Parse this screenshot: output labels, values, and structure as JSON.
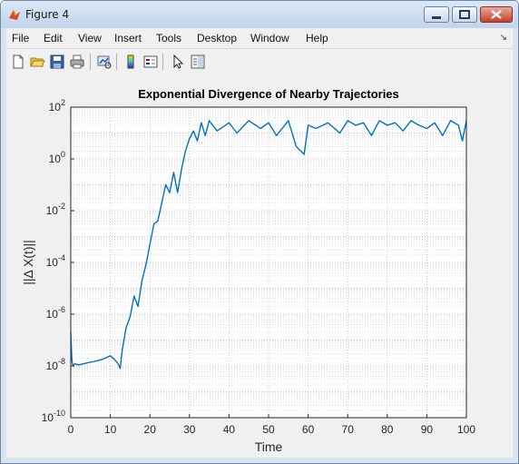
{
  "window": {
    "title": "Figure 4"
  },
  "menu": [
    "File",
    "Edit",
    "View",
    "Insert",
    "Tools",
    "Desktop",
    "Window",
    "Help"
  ],
  "toolbar_icons": [
    "new-figure-icon",
    "open-file-icon",
    "save-icon",
    "print-icon",
    "link-plot-icon",
    "colorbar-icon",
    "legend-icon",
    "edit-plot-icon",
    "property-editor-icon"
  ],
  "colors": {
    "line": "#0072bd",
    "figure_bg": "#f0f0f0",
    "title_bar": "#c8d8ed"
  },
  "chart_data": {
    "type": "line",
    "title": "Exponential Divergence of Nearby Trajectories",
    "xlabel": "Time",
    "ylabel": "||Δ X(t)||",
    "xlim": [
      0,
      100
    ],
    "ylim": [
      1e-10,
      100
    ],
    "yscale": "log",
    "grid": true,
    "minor_grid": true,
    "xticks": [
      "0",
      "10",
      "20",
      "30",
      "40",
      "50",
      "60",
      "70",
      "80",
      "90",
      "100"
    ],
    "yticks": [
      {
        "base": "10",
        "exp": "2"
      },
      {
        "base": "10",
        "exp": "0"
      },
      {
        "base": "10",
        "exp": "-2"
      },
      {
        "base": "10",
        "exp": "-4"
      },
      {
        "base": "10",
        "exp": "-6"
      },
      {
        "base": "10",
        "exp": "-8"
      },
      {
        "base": "10",
        "exp": "-10"
      }
    ],
    "series": [
      {
        "x": [
          0,
          0.3,
          0.6,
          1,
          2,
          4,
          6,
          8,
          10,
          11,
          12,
          12.5,
          13,
          14,
          15,
          16,
          17,
          18,
          19,
          20,
          21,
          22,
          23,
          24,
          25,
          26,
          27,
          28,
          29,
          30,
          31,
          32,
          33,
          34,
          35,
          37,
          40,
          42,
          45,
          48,
          50,
          52,
          55,
          57,
          59,
          60,
          62,
          65,
          68,
          70,
          72,
          74,
          76,
          78,
          80,
          82,
          84,
          86,
          88,
          90,
          92,
          94,
          96,
          98,
          99,
          100
        ],
        "y": [
          2e-07,
          1.5e-08,
          1e-08,
          1.2e-08,
          1.1e-08,
          1.3e-08,
          1.5e-08,
          1.8e-08,
          2.5e-08,
          1.8e-08,
          1.2e-08,
          8e-09,
          4e-08,
          3e-07,
          8e-07,
          5e-06,
          2e-06,
          2e-05,
          8e-05,
          0.0005,
          0.003,
          0.004,
          0.02,
          0.1,
          0.05,
          0.3,
          0.05,
          0.4,
          2,
          6,
          12,
          5,
          25,
          8,
          30,
          12,
          25,
          10,
          30,
          15,
          25,
          8,
          30,
          3,
          1.5,
          20,
          15,
          25,
          10,
          30,
          20,
          25,
          8,
          30,
          20,
          25,
          12,
          30,
          20,
          15,
          25,
          8,
          30,
          20,
          5,
          30
        ]
      }
    ]
  }
}
